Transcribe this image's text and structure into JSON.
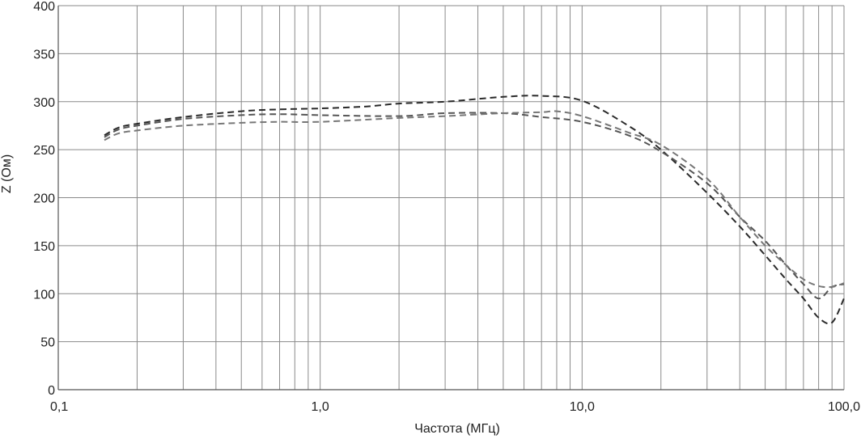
{
  "chart_data": {
    "type": "line",
    "title": "",
    "xlabel": "Частота (МГц)",
    "ylabel": "Z  (Ом)",
    "x_scale": "log",
    "xlim": [
      0.1,
      100
    ],
    "ylim": [
      0,
      400
    ],
    "x_ticks": [
      {
        "value": 0.1,
        "label": "0,1"
      },
      {
        "value": 1,
        "label": "1,0"
      },
      {
        "value": 10,
        "label": "10,0"
      },
      {
        "value": 100,
        "label": "100,0"
      }
    ],
    "y_ticks": [
      0,
      50,
      100,
      150,
      200,
      250,
      300,
      350,
      400
    ],
    "grid": true,
    "legend": "none",
    "series": [
      {
        "color": "#2a2a2a",
        "x": [
          0.15,
          0.17,
          0.2,
          0.3,
          0.5,
          0.7,
          1,
          1.5,
          2,
          3,
          5,
          7,
          10,
          15,
          20,
          30,
          40,
          50,
          60,
          70,
          80,
          90,
          100
        ],
        "y": [
          265,
          273,
          277,
          284,
          290,
          292,
          293,
          295,
          298,
          300,
          305,
          306,
          301,
          275,
          250,
          205,
          170,
          140,
          115,
          95,
          75,
          70,
          95
        ]
      },
      {
        "color": "#555555",
        "x": [
          0.15,
          0.17,
          0.2,
          0.3,
          0.5,
          0.7,
          1,
          2,
          3,
          5,
          7,
          10,
          15,
          20,
          30,
          40,
          50,
          60,
          70,
          80,
          90,
          100
        ],
        "y": [
          263,
          271,
          275,
          282,
          286,
          287,
          286,
          285,
          288,
          288,
          284,
          279,
          265,
          248,
          215,
          180,
          155,
          130,
          110,
          95,
          107,
          110
        ]
      },
      {
        "color": "#777777",
        "x": [
          0.15,
          0.17,
          0.2,
          0.3,
          0.5,
          0.7,
          1,
          2,
          3,
          5,
          7,
          8,
          10,
          15,
          20,
          30,
          40,
          50,
          60,
          70,
          80,
          90,
          100
        ],
        "y": [
          260,
          267,
          270,
          275,
          278,
          279,
          279,
          283,
          285,
          288,
          289,
          290,
          285,
          268,
          255,
          220,
          180,
          150,
          130,
          115,
          108,
          107,
          111
        ]
      }
    ]
  }
}
